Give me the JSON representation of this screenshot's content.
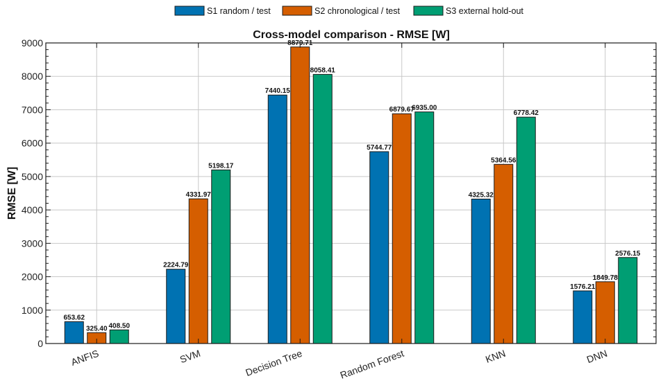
{
  "chart_data": {
    "type": "bar",
    "title": "Cross-model comparison - RMSE [W]",
    "xlabel": "",
    "ylabel": "RMSE [W]",
    "ylim": [
      0,
      9000
    ],
    "yticks": [
      0,
      1000,
      2000,
      3000,
      4000,
      5000,
      6000,
      7000,
      8000,
      9000
    ],
    "grid": true,
    "legend_position": "top-center",
    "categories": [
      "ANFIS",
      "SVM",
      "Decision Tree",
      "Random Forest",
      "KNN",
      "DNN"
    ],
    "series": [
      {
        "name": "S1 random / test",
        "color": "#0072B2",
        "values": [
          653.62,
          2224.79,
          7440.15,
          5744.77,
          4325.32,
          1576.21
        ],
        "value_labels": [
          "653.62",
          "2224.79",
          "7440.15",
          "5744.77",
          "4325.32",
          "1576.21"
        ]
      },
      {
        "name": "S2 chronological / test",
        "color": "#D55E00",
        "values": [
          325.4,
          4331.97,
          8879.71,
          6879.67,
          5364.56,
          1849.78
        ],
        "value_labels": [
          "325.40",
          "4331.97",
          "8879.71",
          "6879.67",
          "5364.56",
          "1849.78"
        ]
      },
      {
        "name": "S3 external hold-out",
        "color": "#009E73",
        "values": [
          408.5,
          5198.17,
          8058.41,
          6935.0,
          6778.42,
          2576.15
        ],
        "value_labels": [
          "408.50",
          "5198.17",
          "8058.41",
          "6935.00",
          "6778.42",
          "2576.15"
        ]
      }
    ]
  }
}
